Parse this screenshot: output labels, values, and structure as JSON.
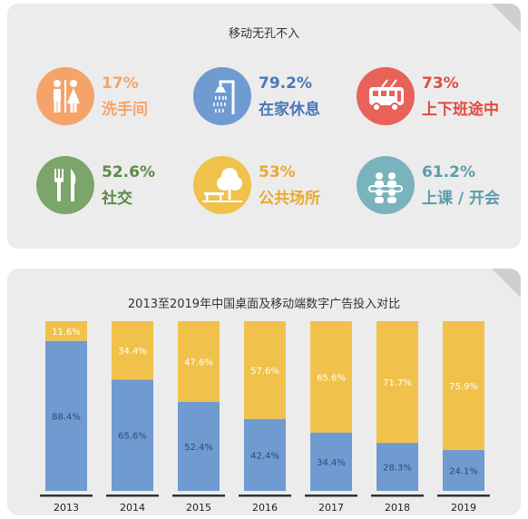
{
  "panel1": {
    "title": "移动无孔不入",
    "items": [
      {
        "value": "17%",
        "label": "洗手间",
        "icon": "restroom-icon",
        "color": "#f4a46a"
      },
      {
        "value": "79.2%",
        "label": "在家休息",
        "icon": "shower-icon",
        "color": "#6f9bd1"
      },
      {
        "value": "73%",
        "label": "上下班途中",
        "icon": "bus-icon",
        "color": "#e8625a"
      },
      {
        "value": "52.6%",
        "label": "社交",
        "icon": "fork-knife-icon",
        "color": "#7ba56a"
      },
      {
        "value": "53%",
        "label": "公共场所",
        "icon": "park-bench-icon",
        "color": "#f0c24b"
      },
      {
        "value": "61.2%",
        "label": "上课 / 开会",
        "icon": "meeting-icon",
        "color": "#79b4be"
      }
    ]
  },
  "chart_data": {
    "type": "bar",
    "title": "2013至2019年中国桌面及移动端数字广告投入对比",
    "categories": [
      "2013",
      "2014",
      "2015",
      "2016",
      "2017",
      "2018",
      "2019"
    ],
    "series": [
      {
        "values": [
          88.4,
          65.6,
          52.4,
          42.4,
          34.4,
          28.3,
          24.1
        ],
        "color": "#6f9bd1"
      },
      {
        "values": [
          11.6,
          34.4,
          47.6,
          57.6,
          65.6,
          71.7,
          75.9
        ],
        "color": "#f0c24b"
      }
    ],
    "stacked": true,
    "ylim": [
      0,
      100
    ],
    "value_format": "{v}%"
  }
}
